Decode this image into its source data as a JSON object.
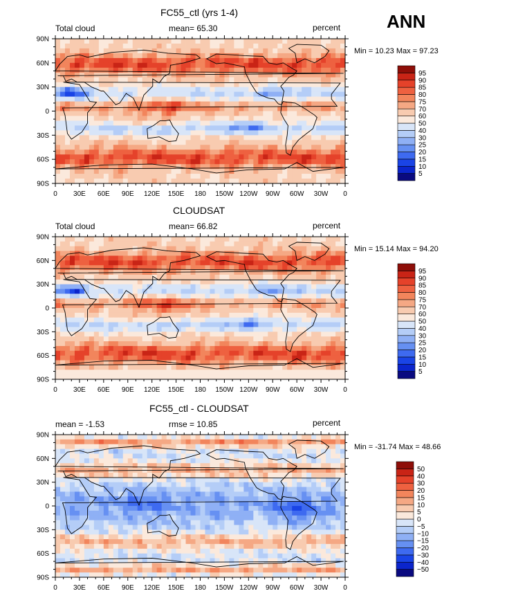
{
  "season": "ANN",
  "colors": {
    "abs": [
      "#0a0a80",
      "#0b25cc",
      "#1a44e6",
      "#3e6af0",
      "#6690f2",
      "#8fb0f5",
      "#b4cdf7",
      "#d8e5f8",
      "#fbe9dc",
      "#f8cbb0",
      "#f5a884",
      "#f2855c",
      "#ee6140",
      "#e5422a",
      "#c92416",
      "#8e0e08"
    ],
    "diff": [
      "#0a0a80",
      "#0b25cc",
      "#1a44e6",
      "#3e6af0",
      "#6690f2",
      "#8fb0f5",
      "#b4cdf7",
      "#d8e5f8",
      "#fbe9dc",
      "#f8cbb0",
      "#f5a884",
      "#f2855c",
      "#ee6140",
      "#e5422a",
      "#c92416",
      "#8e0e08"
    ]
  },
  "axes": {
    "lat_ticks": [
      "90N",
      "60N",
      "30N",
      "0",
      "30S",
      "60S",
      "90S"
    ],
    "lon_ticks": [
      "0",
      "30E",
      "60E",
      "90E",
      "120E",
      "150E",
      "180",
      "150W",
      "120W",
      "90W",
      "60W",
      "30W",
      "0"
    ]
  },
  "chart_data": [
    {
      "type": "heatmap",
      "title": "FC55_ctl (yrs 1-4)",
      "left_label": "Total cloud",
      "center_label": "mean=  65.30",
      "right_label": "percent",
      "mean": 65.3,
      "minmax_text": "Min =  10.23 Max =  97.23",
      "min": 10.23,
      "max": 97.23,
      "levels": [
        5,
        10,
        15,
        20,
        25,
        30,
        40,
        50,
        60,
        70,
        75,
        80,
        85,
        90,
        95
      ],
      "palette": "abs"
    },
    {
      "type": "heatmap",
      "title": "CLOUDSAT",
      "left_label": "Total cloud",
      "center_label": "mean=  66.82",
      "right_label": "percent",
      "mean": 66.82,
      "minmax_text": "Min =  15.14 Max =  94.20",
      "min": 15.14,
      "max": 94.2,
      "levels": [
        5,
        10,
        15,
        20,
        25,
        30,
        40,
        50,
        60,
        70,
        75,
        80,
        85,
        90,
        95
      ],
      "palette": "abs"
    },
    {
      "type": "heatmap",
      "title": "FC55_ctl - CLOUDSAT",
      "left_label": "mean =  -1.53",
      "center_label": "rmse =  10.85",
      "right_label": "percent",
      "mean": -1.53,
      "rmse": 10.85,
      "minmax_text": "Min = -31.74 Max =  48.66",
      "min": -31.74,
      "max": 48.66,
      "levels": [
        -50,
        -40,
        -30,
        -20,
        -15,
        -10,
        -5,
        0,
        5,
        10,
        15,
        20,
        30,
        40,
        50
      ],
      "palette": "diff"
    }
  ]
}
